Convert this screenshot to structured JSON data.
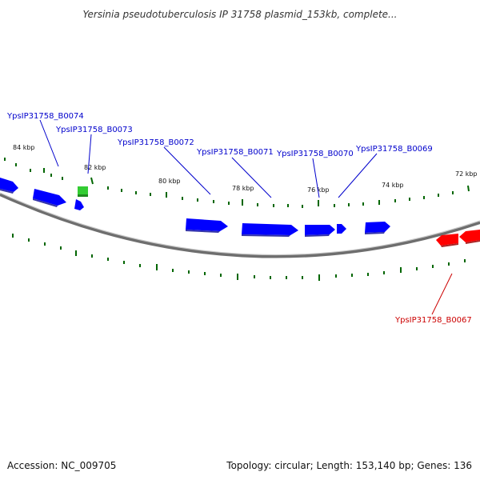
{
  "title": "Yersinia pseudotuberculosis IP 31758 plasmid_153kb, complete...",
  "footer": {
    "accession": "Accession: NC_009705",
    "summary": "Topology: circular; Length: 153,140 bp; Genes: 136"
  },
  "colors": {
    "forward_gene": "#0000ff",
    "reverse_gene": "#ff0000",
    "rna_gene": "#33cc33",
    "tick": "#006600",
    "backbone": "#888888",
    "label_forward": "#0000cc",
    "label_reverse": "#cc0000"
  },
  "kbp_labels": [
    "84 kbp",
    "82 kbp",
    "80 kbp",
    "78 kbp",
    "76 kbp",
    "74 kbp",
    "72 kbp"
  ],
  "gene_labels": [
    {
      "id": "g74",
      "text": "YpsIP31758_B0074",
      "strand": "forward"
    },
    {
      "id": "g73",
      "text": "YpsIP31758_B0073",
      "strand": "forward"
    },
    {
      "id": "g72",
      "text": "YpsIP31758_B0072",
      "strand": "forward"
    },
    {
      "id": "g71",
      "text": "YpsIP31758_B0071",
      "strand": "forward"
    },
    {
      "id": "g70",
      "text": "YpsIP31758_B0070",
      "strand": "forward"
    },
    {
      "id": "g69",
      "text": "YpsIP31758_B0069",
      "strand": "forward"
    },
    {
      "id": "g67",
      "text": "YpsIP31758_B0067",
      "strand": "reverse"
    }
  ]
}
